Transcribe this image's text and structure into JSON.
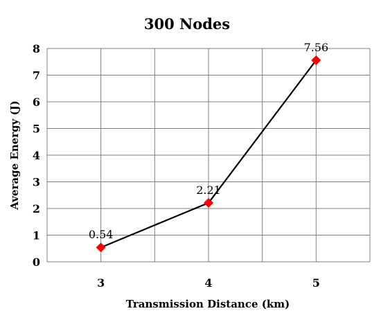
{
  "chart_data": {
    "type": "line",
    "title": "300 Nodes",
    "xlabel": "Transmission Distance (km)",
    "ylabel": "Average Energy (J)",
    "categories": [
      "3",
      "4",
      "5"
    ],
    "series": [
      {
        "values": [
          0.54,
          2.21,
          7.56
        ],
        "data_labels": [
          "0.54",
          "2.21",
          "7.56"
        ],
        "line_color": "#000000",
        "marker": "diamond",
        "marker_color": "#ff0000"
      }
    ],
    "ylim": [
      0,
      8
    ],
    "y_ticks": [
      "0",
      "1",
      "2",
      "3",
      "4",
      "5",
      "6",
      "7",
      "8"
    ],
    "grid": true
  }
}
